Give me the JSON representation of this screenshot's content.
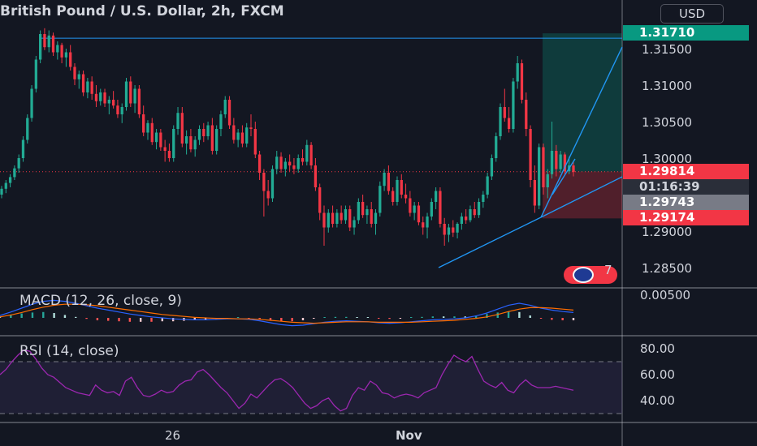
{
  "header": {
    "title": "British Pound / U.S. Dollar, 2h, FXCM",
    "currency_button": "USD"
  },
  "chart_data": {
    "type": "candlestick",
    "title": "British Pound / U.S. Dollar, 2h, FXCM",
    "price_scale": [
      "1.31500",
      "1.31000",
      "1.30500",
      "1.30000",
      "1.29500",
      "1.29000",
      "1.28500"
    ],
    "price_ticks": [
      1.315,
      1.31,
      1.305,
      1.3,
      1.295,
      1.29,
      1.285
    ],
    "time_labels": [
      {
        "text": "26",
        "bold": false
      },
      {
        "text": "Nov",
        "bold": true
      }
    ],
    "ohlc": [
      [
        1.295,
        1.2962,
        1.2945,
        1.2958
      ],
      [
        1.2958,
        1.297,
        1.2952,
        1.2966
      ],
      [
        1.2966,
        1.2978,
        1.296,
        1.2974
      ],
      [
        1.2974,
        1.299,
        1.297,
        1.2986
      ],
      [
        1.2986,
        1.3005,
        1.298,
        1.3
      ],
      [
        1.3,
        1.303,
        1.2995,
        1.3025
      ],
      [
        1.3025,
        1.306,
        1.302,
        1.3055
      ],
      [
        1.3055,
        1.31,
        1.305,
        1.3095
      ],
      [
        1.3095,
        1.314,
        1.309,
        1.3135
      ],
      [
        1.3135,
        1.3175,
        1.313,
        1.317
      ],
      [
        1.317,
        1.3178,
        1.3148,
        1.3152
      ],
      [
        1.3152,
        1.3175,
        1.3145,
        1.3168
      ],
      [
        1.3168,
        1.3172,
        1.314,
        1.3145
      ],
      [
        1.3145,
        1.316,
        1.3135,
        1.3155
      ],
      [
        1.3155,
        1.3158,
        1.313,
        1.3138
      ],
      [
        1.3138,
        1.315,
        1.3125,
        1.3145
      ],
      [
        1.3145,
        1.3155,
        1.312,
        1.3125
      ],
      [
        1.3125,
        1.313,
        1.31,
        1.3108
      ],
      [
        1.3108,
        1.312,
        1.3095,
        1.3115
      ],
      [
        1.3115,
        1.312,
        1.3085,
        1.309
      ],
      [
        1.309,
        1.311,
        1.3082,
        1.3105
      ],
      [
        1.3105,
        1.3112,
        1.308,
        1.3088
      ],
      [
        1.3088,
        1.31,
        1.307,
        1.3078
      ],
      [
        1.3078,
        1.3095,
        1.3072,
        1.309
      ],
      [
        1.309,
        1.3095,
        1.307,
        1.3075
      ],
      [
        1.3075,
        1.3085,
        1.306,
        1.308
      ],
      [
        1.308,
        1.3092,
        1.3068,
        1.3072
      ],
      [
        1.3072,
        1.308,
        1.3055,
        1.306
      ],
      [
        1.306,
        1.3075,
        1.3048,
        1.307
      ],
      [
        1.307,
        1.311,
        1.3065,
        1.3105
      ],
      [
        1.3105,
        1.3112,
        1.307,
        1.3075
      ],
      [
        1.3075,
        1.31,
        1.3062,
        1.3095
      ],
      [
        1.3095,
        1.31,
        1.3055,
        1.306
      ],
      [
        1.306,
        1.3072,
        1.303,
        1.3035
      ],
      [
        1.3035,
        1.3052,
        1.3025,
        1.3048
      ],
      [
        1.3048,
        1.3055,
        1.3018,
        1.3022
      ],
      [
        1.3022,
        1.304,
        1.3012,
        1.3035
      ],
      [
        1.3035,
        1.304,
        1.301,
        1.3015
      ],
      [
        1.3015,
        1.3025,
        1.2995,
        1.301
      ],
      [
        1.301,
        1.302,
        1.2995,
        1.3
      ],
      [
        1.3,
        1.3045,
        1.2995,
        1.304
      ],
      [
        1.304,
        1.307,
        1.3032,
        1.3062
      ],
      [
        1.3062,
        1.307,
        1.3015,
        1.302
      ],
      [
        1.302,
        1.3038,
        1.3005,
        1.303
      ],
      [
        1.303,
        1.304,
        1.3008,
        1.3012
      ],
      [
        1.3012,
        1.303,
        1.3002,
        1.3025
      ],
      [
        1.3025,
        1.3045,
        1.3018,
        1.304
      ],
      [
        1.304,
        1.3048,
        1.3022,
        1.303
      ],
      [
        1.303,
        1.305,
        1.3025,
        1.3045
      ],
      [
        1.3045,
        1.3055,
        1.3005,
        1.301
      ],
      [
        1.301,
        1.3045,
        1.3005,
        1.304
      ],
      [
        1.304,
        1.3065,
        1.303,
        1.306
      ],
      [
        1.306,
        1.3085,
        1.3055,
        1.308
      ],
      [
        1.308,
        1.3085,
        1.304,
        1.3045
      ],
      [
        1.3045,
        1.3055,
        1.302,
        1.3025
      ],
      [
        1.3025,
        1.304,
        1.3015,
        1.3035
      ],
      [
        1.3035,
        1.3045,
        1.3015,
        1.302
      ],
      [
        1.302,
        1.3048,
        1.3015,
        1.3042
      ],
      [
        1.3042,
        1.306,
        1.303,
        1.304
      ],
      [
        1.304,
        1.305,
        1.3,
        1.3005
      ],
      [
        1.3005,
        1.301,
        1.297,
        1.298
      ],
      [
        1.298,
        1.2985,
        1.292,
        1.2955
      ],
      [
        1.2955,
        1.297,
        1.2935,
        1.2945
      ],
      [
        1.2945,
        1.299,
        1.294,
        1.2985
      ],
      [
        1.2985,
        1.301,
        1.2978,
        1.3002
      ],
      [
        1.3002,
        1.3008,
        1.298,
        1.2985
      ],
      [
        1.2985,
        1.3,
        1.2975,
        1.2995
      ],
      [
        1.2995,
        1.3005,
        1.2982,
        1.299
      ],
      [
        1.299,
        1.3,
        1.2978,
        1.2985
      ],
      [
        1.2985,
        1.3005,
        1.298,
        1.3
      ],
      [
        1.3,
        1.3012,
        1.299,
        1.2995
      ],
      [
        1.2995,
        1.3025,
        1.299,
        1.3018
      ],
      [
        1.3018,
        1.3022,
        1.2985,
        1.299
      ],
      [
        1.299,
        1.3,
        1.2955,
        1.296
      ],
      [
        1.296,
        1.2965,
        1.2915,
        1.2925
      ],
      [
        1.2925,
        1.2935,
        1.288,
        1.2905
      ],
      [
        1.2905,
        1.293,
        1.2898,
        1.2925
      ],
      [
        1.2925,
        1.2935,
        1.2905,
        1.291
      ],
      [
        1.291,
        1.293,
        1.2905,
        1.2925
      ],
      [
        1.2925,
        1.2935,
        1.291,
        1.2915
      ],
      [
        1.2915,
        1.2935,
        1.291,
        1.293
      ],
      [
        1.293,
        1.2935,
        1.29,
        1.2905
      ],
      [
        1.2905,
        1.292,
        1.2895,
        1.2915
      ],
      [
        1.2915,
        1.2945,
        1.291,
        1.294
      ],
      [
        1.294,
        1.295,
        1.2918,
        1.2922
      ],
      [
        1.2922,
        1.2935,
        1.291,
        1.293
      ],
      [
        1.293,
        1.294,
        1.2905,
        1.291
      ],
      [
        1.291,
        1.293,
        1.2895,
        1.2925
      ],
      [
        1.2925,
        1.2968,
        1.292,
        1.2962
      ],
      [
        1.2962,
        1.2985,
        1.2955,
        1.298
      ],
      [
        1.298,
        1.299,
        1.295,
        1.2955
      ],
      [
        1.2955,
        1.296,
        1.2935,
        1.294
      ],
      [
        1.294,
        1.2975,
        1.2935,
        1.297
      ],
      [
        1.297,
        1.2978,
        1.2945,
        1.295
      ],
      [
        1.295,
        1.2965,
        1.2938,
        1.2945
      ],
      [
        1.2945,
        1.2955,
        1.292,
        1.2925
      ],
      [
        1.2925,
        1.294,
        1.2915,
        1.2935
      ],
      [
        1.2935,
        1.294,
        1.2908,
        1.2912
      ],
      [
        1.2912,
        1.292,
        1.2895,
        1.2905
      ],
      [
        1.2905,
        1.2925,
        1.289,
        1.292
      ],
      [
        1.292,
        1.2945,
        1.2915,
        1.294
      ],
      [
        1.294,
        1.296,
        1.293,
        1.2955
      ],
      [
        1.2955,
        1.296,
        1.2905,
        1.291
      ],
      [
        1.291,
        1.2918,
        1.288,
        1.2895
      ],
      [
        1.2895,
        1.291,
        1.2885,
        1.2905
      ],
      [
        1.2905,
        1.2915,
        1.2892,
        1.2898
      ],
      [
        1.2898,
        1.2912,
        1.289,
        1.291
      ],
      [
        1.291,
        1.2925,
        1.2902,
        1.292
      ],
      [
        1.292,
        1.293,
        1.291,
        1.2915
      ],
      [
        1.2915,
        1.2935,
        1.2912,
        1.293
      ],
      [
        1.293,
        1.294,
        1.2918,
        1.2922
      ],
      [
        1.2922,
        1.2945,
        1.2918,
        1.294
      ],
      [
        1.294,
        1.2955,
        1.2932,
        1.295
      ],
      [
        1.295,
        1.298,
        1.2945,
        1.2975
      ],
      [
        1.2975,
        1.3005,
        1.297,
        1.3
      ],
      [
        1.3,
        1.3035,
        1.2995,
        1.303
      ],
      [
        1.303,
        1.3075,
        1.3025,
        1.307
      ],
      [
        1.307,
        1.3095,
        1.305,
        1.3055
      ],
      [
        1.3055,
        1.307,
        1.3035,
        1.304
      ],
      [
        1.304,
        1.311,
        1.3035,
        1.3105
      ],
      [
        1.3105,
        1.314,
        1.3095,
        1.313
      ],
      [
        1.313,
        1.3135,
        1.3075,
        1.308
      ],
      [
        1.308,
        1.309,
        1.303,
        1.304
      ],
      [
        1.304,
        1.3045,
        1.296,
        1.297
      ],
      [
        1.297,
        1.299,
        1.2925,
        1.2935
      ],
      [
        1.2935,
        1.302,
        1.293,
        1.3015
      ],
      [
        1.3015,
        1.302,
        1.295,
        1.296
      ],
      [
        1.296,
        1.2985,
        1.2945,
        1.2978
      ],
      [
        1.2978,
        1.305,
        1.2972,
        1.301
      ],
      [
        1.301,
        1.3018,
        1.2975,
        1.2985
      ],
      [
        1.2985,
        1.301,
        1.298,
        1.3005
      ],
      [
        1.3005,
        1.3008,
        1.2978,
        1.2982
      ],
      [
        1.2982,
        1.3002,
        1.2978,
        1.299
      ],
      [
        1.299,
        1.2995,
        1.2975,
        1.2981
      ]
    ],
    "levels": {
      "target_price": 1.3171,
      "current_price": 1.29814,
      "countdown": "01:16:39",
      "grey_price": 1.29743,
      "stop_price": 1.29174
    },
    "price_badges": [
      {
        "text": "1.31710",
        "style": "teal"
      },
      {
        "text": "1.29814",
        "style": "red"
      },
      {
        "text": "01:16:39",
        "style": "dark"
      },
      {
        "text": "1.29743",
        "style": "grey"
      },
      {
        "text": "1.29174",
        "style": "red"
      }
    ],
    "macd": {
      "label": "MACD (12, 26, close, 9)",
      "scale_label": "0.00500",
      "macd_line": [
        0.0005,
        0.0012,
        0.002,
        0.0028,
        0.0034,
        0.0036,
        0.0034,
        0.003,
        0.0025,
        0.002,
        0.0016,
        0.0012,
        0.0008,
        0.0005,
        0.0002,
        0.0,
        -0.0002,
        -0.0003,
        -0.0004,
        -0.0004,
        -0.0003,
        -0.0002,
        -0.0002,
        -0.0003,
        -0.0006,
        -0.001,
        -0.0014,
        -0.0016,
        -0.0015,
        -0.0012,
        -0.0009,
        -0.0007,
        -0.0006,
        -0.0007,
        -0.0008,
        -0.001,
        -0.0011,
        -0.001,
        -0.0008,
        -0.0006,
        -0.0004,
        -0.0003,
        -0.0002,
        0.0,
        0.0004,
        0.001,
        0.0018,
        0.0026,
        0.003,
        0.0026,
        0.002,
        0.0016,
        0.0013,
        0.0011
      ],
      "signal_line": [
        0.0002,
        0.0006,
        0.0011,
        0.0017,
        0.0022,
        0.0026,
        0.0028,
        0.0028,
        0.0027,
        0.0025,
        0.0022,
        0.0019,
        0.0016,
        0.0013,
        0.001,
        0.0007,
        0.0005,
        0.0003,
        0.0001,
        0.0,
        -0.0001,
        -0.0001,
        -0.0002,
        -0.0002,
        -0.0003,
        -0.0005,
        -0.0007,
        -0.0009,
        -0.001,
        -0.0011,
        -0.001,
        -0.0009,
        -0.0008,
        -0.0008,
        -0.0008,
        -0.0009,
        -0.0009,
        -0.0009,
        -0.0009,
        -0.0008,
        -0.0007,
        -0.0006,
        -0.0005,
        -0.0003,
        -0.0001,
        0.0002,
        0.0007,
        0.0013,
        0.0018,
        0.0021,
        0.0021,
        0.002,
        0.0018,
        0.0016
      ]
    },
    "rsi": {
      "label": "RSI (14, close)",
      "scale_labels": [
        "80.00",
        "60.00",
        "40.00"
      ],
      "scale_values": [
        80,
        60,
        40
      ],
      "upper_band": 70,
      "lower_band": 30,
      "values": [
        60,
        64,
        70,
        75,
        79,
        78,
        72,
        65,
        60,
        58,
        54,
        50,
        48,
        46,
        45,
        44,
        52,
        48,
        46,
        47,
        44,
        55,
        58,
        50,
        44,
        43,
        45,
        48,
        46,
        47,
        52,
        55,
        56,
        62,
        64,
        60,
        55,
        50,
        46,
        40,
        34,
        38,
        45,
        42,
        47,
        52,
        56,
        57,
        54,
        50,
        44,
        38,
        34,
        36,
        40,
        42,
        36,
        32,
        34,
        44,
        50,
        48,
        55,
        52,
        46,
        45,
        42,
        44,
        45,
        44,
        42,
        46,
        48,
        50,
        60,
        68,
        75,
        72,
        70,
        74,
        64,
        55,
        52,
        50,
        54,
        48,
        46,
        52,
        56,
        52,
        50,
        50,
        50,
        51,
        50,
        49,
        48
      ]
    }
  },
  "indicator_flag": {
    "count": "7"
  }
}
